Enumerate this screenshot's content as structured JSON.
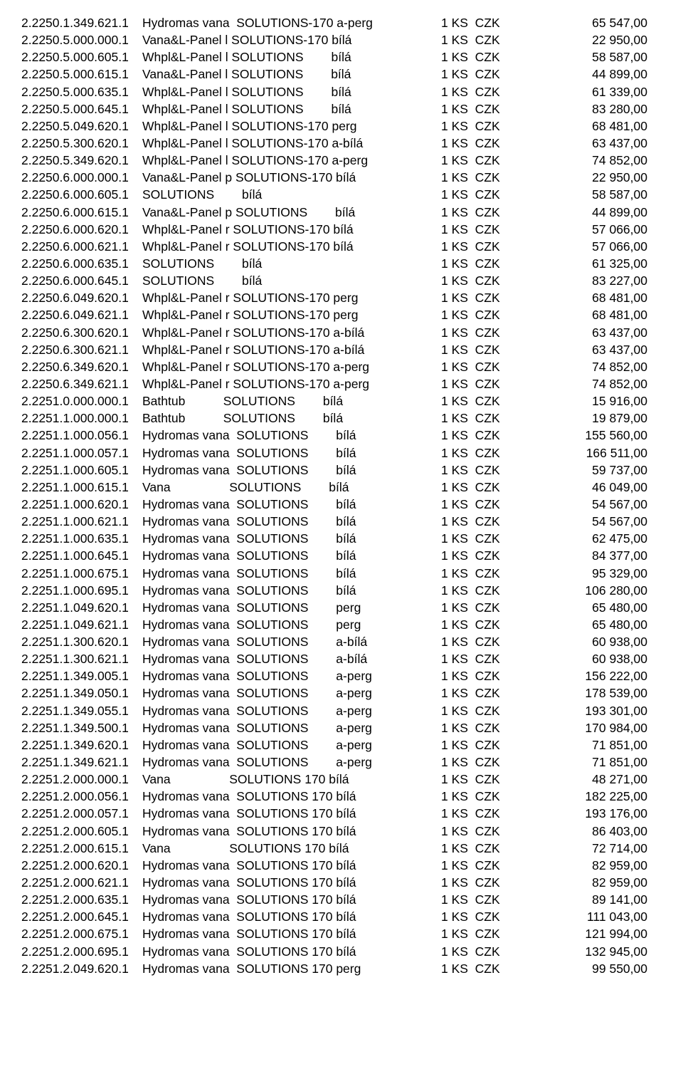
{
  "rows": [
    {
      "code": "2.2250.1.349.621.1",
      "desc": "Hydromas vana  SOLUTIONS-170 a-perg",
      "qty": "1 KS  CZK",
      "price": "65 547,00"
    },
    {
      "code": "2.2250.5.000.000.1",
      "desc": "Vana&L-Panel l SOLUTIONS-170 bílá",
      "qty": "1 KS  CZK",
      "price": "22 950,00"
    },
    {
      "code": "2.2250.5.000.605.1",
      "desc": "Whpl&L-Panel l SOLUTIONS        bílá",
      "qty": "1 KS  CZK",
      "price": "58 587,00"
    },
    {
      "code": "2.2250.5.000.615.1",
      "desc": "Vana&L-Panel l SOLUTIONS        bílá",
      "qty": "1 KS  CZK",
      "price": "44 899,00"
    },
    {
      "code": "2.2250.5.000.635.1",
      "desc": "Whpl&L-Panel l SOLUTIONS        bílá",
      "qty": "1 KS  CZK",
      "price": "61 339,00"
    },
    {
      "code": "2.2250.5.000.645.1",
      "desc": "Whpl&L-Panel l SOLUTIONS        bílá",
      "qty": "1 KS  CZK",
      "price": "83 280,00"
    },
    {
      "code": "2.2250.5.049.620.1",
      "desc": "Whpl&L-Panel l SOLUTIONS-170 perg",
      "qty": "1 KS  CZK",
      "price": "68 481,00"
    },
    {
      "code": "2.2250.5.300.620.1",
      "desc": "Whpl&L-Panel l SOLUTIONS-170 a-bílá",
      "qty": "1 KS  CZK",
      "price": "63 437,00"
    },
    {
      "code": "2.2250.5.349.620.1",
      "desc": "Whpl&L-Panel l SOLUTIONS-170 a-perg",
      "qty": "1 KS  CZK",
      "price": "74 852,00"
    },
    {
      "code": "2.2250.6.000.000.1",
      "desc": "Vana&L-Panel p SOLUTIONS-170 bílá",
      "qty": "1 KS  CZK",
      "price": "22 950,00"
    },
    {
      "code": "2.2250.6.000.605.1",
      "desc": "SOLUTIONS        bílá",
      "qty": "1 KS  CZK",
      "price": "58 587,00"
    },
    {
      "code": "2.2250.6.000.615.1",
      "desc": "Vana&L-Panel p SOLUTIONS        bílá",
      "qty": "1 KS  CZK",
      "price": "44 899,00"
    },
    {
      "code": "2.2250.6.000.620.1",
      "desc": "Whpl&L-Panel r SOLUTIONS-170 bílá",
      "qty": "1 KS  CZK",
      "price": "57 066,00"
    },
    {
      "code": "2.2250.6.000.621.1",
      "desc": "Whpl&L-Panel r SOLUTIONS-170 bílá",
      "qty": "1 KS  CZK",
      "price": "57 066,00"
    },
    {
      "code": "2.2250.6.000.635.1",
      "desc": "SOLUTIONS        bílá",
      "qty": "1 KS  CZK",
      "price": "61 325,00"
    },
    {
      "code": "2.2250.6.000.645.1",
      "desc": "SOLUTIONS        bílá",
      "qty": "1 KS  CZK",
      "price": "83 227,00"
    },
    {
      "code": "2.2250.6.049.620.1",
      "desc": "Whpl&L-Panel r SOLUTIONS-170 perg",
      "qty": "1 KS  CZK",
      "price": "68 481,00"
    },
    {
      "code": "2.2250.6.049.621.1",
      "desc": "Whpl&L-Panel r SOLUTIONS-170 perg",
      "qty": "1 KS  CZK",
      "price": "68 481,00"
    },
    {
      "code": "2.2250.6.300.620.1",
      "desc": "Whpl&L-Panel r SOLUTIONS-170 a-bílá",
      "qty": "1 KS  CZK",
      "price": "63 437,00"
    },
    {
      "code": "2.2250.6.300.621.1",
      "desc": "Whpl&L-Panel r SOLUTIONS-170 a-bílá",
      "qty": "1 KS  CZK",
      "price": "63 437,00"
    },
    {
      "code": "2.2250.6.349.620.1",
      "desc": "Whpl&L-Panel r SOLUTIONS-170 a-perg",
      "qty": "1 KS  CZK",
      "price": "74 852,00"
    },
    {
      "code": "2.2250.6.349.621.1",
      "desc": "Whpl&L-Panel r SOLUTIONS-170 a-perg",
      "qty": "1 KS  CZK",
      "price": "74 852,00"
    },
    {
      "code": "2.2251.0.000.000.1",
      "desc": "Bathtub           SOLUTIONS        bílá",
      "qty": "1 KS  CZK",
      "price": "15 916,00"
    },
    {
      "code": "2.2251.1.000.000.1",
      "desc": "Bathtub           SOLUTIONS        bílá",
      "qty": "1 KS  CZK",
      "price": "19 879,00"
    },
    {
      "code": "2.2251.1.000.056.1",
      "desc": "Hydromas vana  SOLUTIONS        bílá",
      "qty": "1 KS  CZK",
      "price": "155 560,00"
    },
    {
      "code": "2.2251.1.000.057.1",
      "desc": "Hydromas vana  SOLUTIONS        bílá",
      "qty": "1 KS  CZK",
      "price": "166 511,00"
    },
    {
      "code": "2.2251.1.000.605.1",
      "desc": "Hydromas vana  SOLUTIONS        bílá",
      "qty": "1 KS  CZK",
      "price": "59 737,00"
    },
    {
      "code": "2.2251.1.000.615.1",
      "desc": "Vana                 SOLUTIONS        bílá",
      "qty": "1 KS  CZK",
      "price": "46 049,00"
    },
    {
      "code": "2.2251.1.000.620.1",
      "desc": "Hydromas vana  SOLUTIONS        bílá",
      "qty": "1 KS  CZK",
      "price": "54 567,00"
    },
    {
      "code": "2.2251.1.000.621.1",
      "desc": "Hydromas vana  SOLUTIONS        bílá",
      "qty": "1 KS  CZK",
      "price": "54 567,00"
    },
    {
      "code": "2.2251.1.000.635.1",
      "desc": "Hydromas vana  SOLUTIONS        bílá",
      "qty": "1 KS  CZK",
      "price": "62 475,00"
    },
    {
      "code": "2.2251.1.000.645.1",
      "desc": "Hydromas vana  SOLUTIONS        bílá",
      "qty": "1 KS  CZK",
      "price": "84 377,00"
    },
    {
      "code": "2.2251.1.000.675.1",
      "desc": "Hydromas vana  SOLUTIONS        bílá",
      "qty": "1 KS  CZK",
      "price": "95 329,00"
    },
    {
      "code": "2.2251.1.000.695.1",
      "desc": "Hydromas vana  SOLUTIONS        bílá",
      "qty": "1 KS  CZK",
      "price": "106 280,00"
    },
    {
      "code": "2.2251.1.049.620.1",
      "desc": "Hydromas vana  SOLUTIONS        perg",
      "qty": "1 KS  CZK",
      "price": "65 480,00"
    },
    {
      "code": "2.2251.1.049.621.1",
      "desc": "Hydromas vana  SOLUTIONS        perg",
      "qty": "1 KS  CZK",
      "price": "65 480,00"
    },
    {
      "code": "2.2251.1.300.620.1",
      "desc": "Hydromas vana  SOLUTIONS        a-bílá",
      "qty": "1 KS  CZK",
      "price": "60 938,00"
    },
    {
      "code": "2.2251.1.300.621.1",
      "desc": "Hydromas vana  SOLUTIONS        a-bílá",
      "qty": "1 KS  CZK",
      "price": "60 938,00"
    },
    {
      "code": "2.2251.1.349.005.1",
      "desc": "Hydromas vana  SOLUTIONS        a-perg",
      "qty": "1 KS  CZK",
      "price": "156 222,00"
    },
    {
      "code": "2.2251.1.349.050.1",
      "desc": "Hydromas vana  SOLUTIONS        a-perg",
      "qty": "1 KS  CZK",
      "price": "178 539,00"
    },
    {
      "code": "2.2251.1.349.055.1",
      "desc": "Hydromas vana  SOLUTIONS        a-perg",
      "qty": "1 KS  CZK",
      "price": "193 301,00"
    },
    {
      "code": "2.2251.1.349.500.1",
      "desc": "Hydromas vana  SOLUTIONS        a-perg",
      "qty": "1 KS  CZK",
      "price": "170 984,00"
    },
    {
      "code": "2.2251.1.349.620.1",
      "desc": "Hydromas vana  SOLUTIONS        a-perg",
      "qty": "1 KS  CZK",
      "price": "71 851,00"
    },
    {
      "code": "2.2251.1.349.621.1",
      "desc": "Hydromas vana  SOLUTIONS        a-perg",
      "qty": "1 KS  CZK",
      "price": "71 851,00"
    },
    {
      "code": "2.2251.2.000.000.1",
      "desc": "Vana                 SOLUTIONS 170 bílá",
      "qty": "1 KS  CZK",
      "price": "48 271,00"
    },
    {
      "code": "2.2251.2.000.056.1",
      "desc": "Hydromas vana  SOLUTIONS 170 bílá",
      "qty": "1 KS  CZK",
      "price": "182 225,00"
    },
    {
      "code": "2.2251.2.000.057.1",
      "desc": "Hydromas vana  SOLUTIONS 170 bílá",
      "qty": "1 KS  CZK",
      "price": "193 176,00"
    },
    {
      "code": "2.2251.2.000.605.1",
      "desc": "Hydromas vana  SOLUTIONS 170 bílá",
      "qty": "1 KS  CZK",
      "price": "86 403,00"
    },
    {
      "code": "2.2251.2.000.615.1",
      "desc": "Vana                 SOLUTIONS 170 bílá",
      "qty": "1 KS  CZK",
      "price": "72 714,00"
    },
    {
      "code": "2.2251.2.000.620.1",
      "desc": "Hydromas vana  SOLUTIONS 170 bílá",
      "qty": "1 KS  CZK",
      "price": "82 959,00"
    },
    {
      "code": "2.2251.2.000.621.1",
      "desc": "Hydromas vana  SOLUTIONS 170 bílá",
      "qty": "1 KS  CZK",
      "price": "82 959,00"
    },
    {
      "code": "2.2251.2.000.635.1",
      "desc": "Hydromas vana  SOLUTIONS 170 bílá",
      "qty": "1 KS  CZK",
      "price": "89 141,00"
    },
    {
      "code": "2.2251.2.000.645.1",
      "desc": "Hydromas vana  SOLUTIONS 170 bílá",
      "qty": "1 KS  CZK",
      "price": "111 043,00"
    },
    {
      "code": "2.2251.2.000.675.1",
      "desc": "Hydromas vana  SOLUTIONS 170 bílá",
      "qty": "1 KS  CZK",
      "price": "121 994,00"
    },
    {
      "code": "2.2251.2.000.695.1",
      "desc": "Hydromas vana  SOLUTIONS 170 bílá",
      "qty": "1 KS  CZK",
      "price": "132 945,00"
    },
    {
      "code": "2.2251.2.049.620.1",
      "desc": "Hydromas vana  SOLUTIONS 170 perg",
      "qty": "1 KS  CZK",
      "price": "99 550,00"
    }
  ]
}
